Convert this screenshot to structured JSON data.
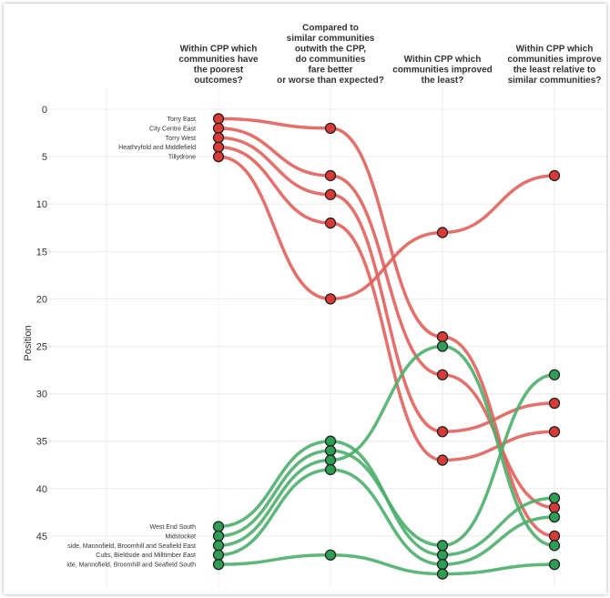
{
  "chart_data": {
    "type": "line",
    "title": "",
    "xlabel": "",
    "ylabel": "Position",
    "stages": [
      [
        "Within CPP which",
        "communities have",
        "the poorest",
        "outcomes?"
      ],
      [
        "Compared to",
        "similar communities",
        "outwith the CPP,",
        "do communities",
        "fare better",
        "or worse than expected?"
      ],
      [
        "Within CPP which",
        "communities improved",
        "the least?"
      ],
      [
        "Within CPP which",
        "communities improve",
        "the least relative to",
        "similar communities?"
      ]
    ],
    "yticks": [
      0,
      5,
      10,
      15,
      20,
      25,
      30,
      35,
      40,
      45
    ],
    "ylim": [
      0,
      48
    ],
    "y_reversed": true,
    "grid": true,
    "colors": {
      "poorest": "#d93a35",
      "best": "#2e9e55",
      "red_line": "#e0605b",
      "green_line": "#4cae6c"
    },
    "series": [
      {
        "name": "Torry East",
        "group": "poorest",
        "values": [
          1,
          2,
          24,
          45
        ]
      },
      {
        "name": "City Centre East",
        "group": "poorest",
        "values": [
          2,
          7,
          28,
          42
        ]
      },
      {
        "name": "Torry West",
        "group": "poorest",
        "values": [
          3,
          9,
          34,
          31
        ]
      },
      {
        "name": "Heathryfold and Middlefield",
        "group": "poorest",
        "values": [
          4,
          12,
          37,
          34
        ]
      },
      {
        "name": "Tillydrone",
        "group": "poorest",
        "values": [
          5,
          20,
          13,
          7
        ]
      },
      {
        "name": "West End South",
        "group": "best",
        "values": [
          44,
          35,
          47,
          41
        ]
      },
      {
        "name": "Midstocket",
        "group": "best",
        "values": [
          45,
          36,
          46,
          28
        ]
      },
      {
        "name": "side, Mannofield, Broomhill and Seafield East",
        "group": "best",
        "values": [
          46,
          37,
          25,
          46
        ]
      },
      {
        "name": "Cults, Bieldside and Milltimber East",
        "group": "best",
        "values": [
          47,
          38,
          48,
          43
        ]
      },
      {
        "name": "ide, Mannofield, Broomhill and Seafield South",
        "group": "best",
        "values": [
          48,
          47,
          49,
          48
        ]
      }
    ]
  }
}
